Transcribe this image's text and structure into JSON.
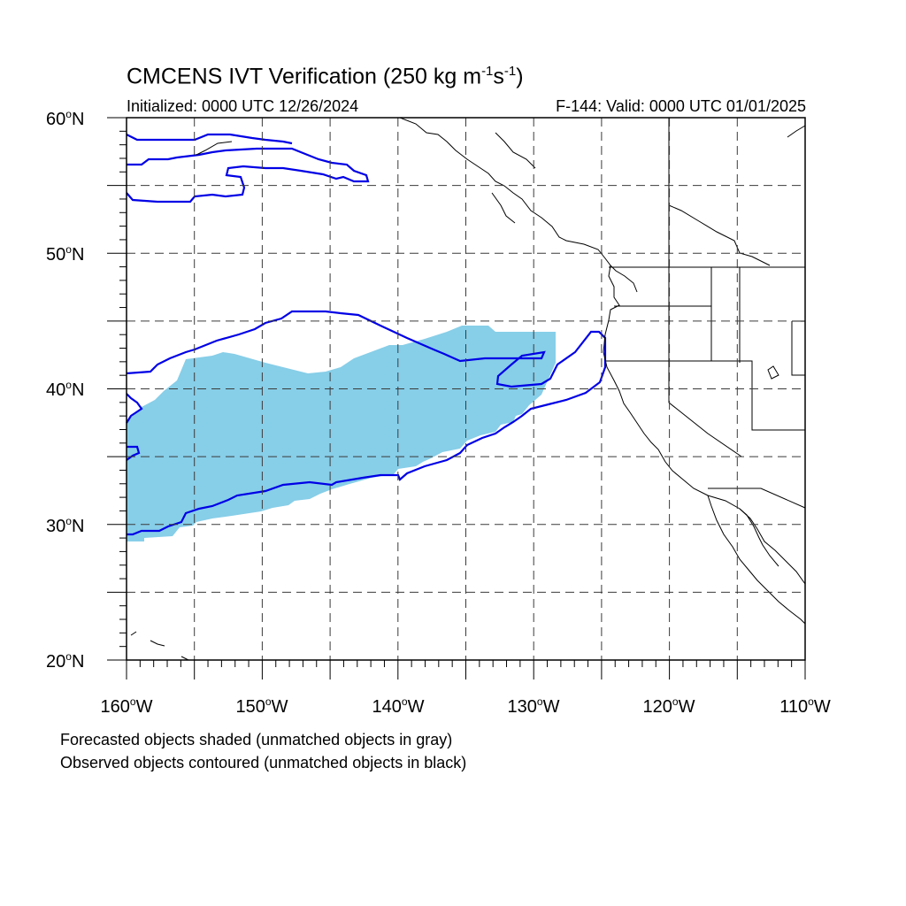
{
  "title": {
    "prefix": "CMCENS IVT Verification (250 kg m",
    "exp1": "-1",
    "mid": "s",
    "exp2": "-1",
    "suffix": ")"
  },
  "initialized": "Initialized: 0000 UTC 12/26/2024",
  "valid": "F-144: Valid: 0000 UTC 01/01/2025",
  "map": {
    "lon_range": [
      -160,
      -110
    ],
    "lat_range": [
      20,
      60
    ],
    "lat_labels": [
      {
        "value": 60,
        "text": "60",
        "hemi": "N"
      },
      {
        "value": 50,
        "text": "50",
        "hemi": "N"
      },
      {
        "value": 40,
        "text": "40",
        "hemi": "N"
      },
      {
        "value": 30,
        "text": "30",
        "hemi": "N"
      },
      {
        "value": 20,
        "text": "20",
        "hemi": "N"
      }
    ],
    "lon_labels": [
      {
        "value": -160,
        "text": "160",
        "hemi": "W"
      },
      {
        "value": -150,
        "text": "150",
        "hemi": "W"
      },
      {
        "value": -140,
        "text": "140",
        "hemi": "W"
      },
      {
        "value": -130,
        "text": "130",
        "hemi": "W"
      },
      {
        "value": -120,
        "text": "120",
        "hemi": "W"
      },
      {
        "value": -110,
        "text": "110",
        "hemi": "W"
      }
    ],
    "gridline_spacing_deg": 5,
    "forecast_fill_color": "#87CEE8",
    "observed_contour_color": "#0000E6",
    "coast_color": "#000000"
  },
  "legend": {
    "line1": "Forecasted objects shaded (unmatched objects in gray)",
    "line2": "Observed objects contoured (unmatched objects in black)"
  }
}
